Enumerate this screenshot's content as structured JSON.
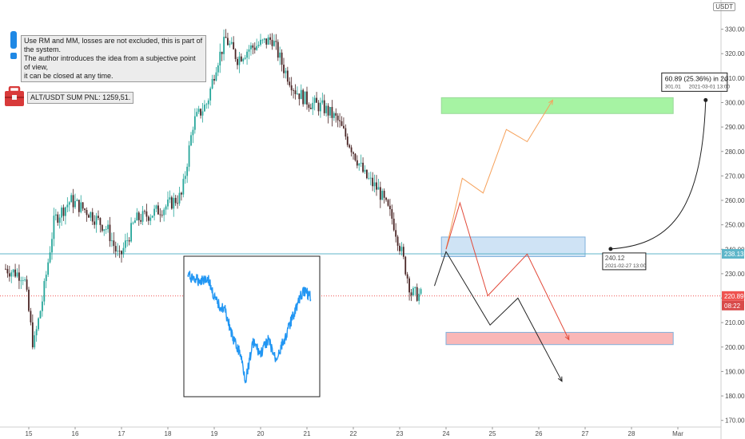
{
  "currency": "USDT",
  "notes": {
    "info_text": "Use RM and MM, losses are not excluded, this is part of the system.\nThe author introduces the idea from a subjective point of view,\n it can be closed at any time.",
    "pnl_text": "ALT/USDT SUM PNL: 1259,51."
  },
  "price_axis": {
    "ticks": [
      "330.00",
      "320.00",
      "310.00",
      "300.00",
      "290.00",
      "280.00",
      "270.00",
      "260.00",
      "250.00",
      "240.00",
      "230.00",
      "220.00",
      "210.00",
      "200.00",
      "190.00",
      "180.00",
      "170.00"
    ]
  },
  "labels": {
    "level_price": "238.13",
    "last_price": "220.89",
    "countdown": "08:22",
    "anchor_price": "240.12",
    "anchor_date": "2021-02-27  13:00",
    "measure_line1": "60.89 (25.36%) in 2d",
    "measure_line2a": "301.01",
    "measure_line2b": "2021-03-01  13:00"
  },
  "colors": {
    "up": "#26a69a",
    "down": "#4a2525",
    "level": "#5fb6c9",
    "last": "#ef5350",
    "green_zone": "#a6f3a3",
    "blue_zone": "#cfe3f5",
    "red_zone": "#f9b7b7",
    "orange_path": "#f6a15a",
    "red_path": "#e24a3a",
    "black_path": "#222222",
    "inset_line": "#2196f3",
    "briefcase": "#d83a3a",
    "info_marker": "#1e88e5"
  },
  "chart_data": {
    "type": "candlestick",
    "ylim": [
      167,
      338
    ],
    "x_ticks": [
      "15",
      "16",
      "17",
      "18",
      "19",
      "20",
      "21",
      "22",
      "23",
      "24",
      "25",
      "26",
      "27",
      "28",
      "Mar"
    ],
    "level": 238.13,
    "last_price": 220.89,
    "trajectory": [
      [
        14.5,
        232
      ],
      [
        14.9,
        229
      ],
      [
        15.1,
        200
      ],
      [
        15.3,
        220
      ],
      [
        15.55,
        252
      ],
      [
        15.9,
        260
      ],
      [
        16.3,
        255
      ],
      [
        16.7,
        248
      ],
      [
        16.95,
        236
      ],
      [
        17.3,
        252
      ],
      [
        17.7,
        255
      ],
      [
        18.0,
        258
      ],
      [
        18.3,
        262
      ],
      [
        18.55,
        292
      ],
      [
        18.85,
        300
      ],
      [
        19.05,
        316
      ],
      [
        19.25,
        326
      ],
      [
        19.5,
        318
      ],
      [
        19.75,
        322
      ],
      [
        20.0,
        324
      ],
      [
        20.25,
        326
      ],
      [
        20.5,
        314
      ],
      [
        20.75,
        305
      ],
      [
        21.05,
        300
      ],
      [
        21.35,
        298
      ],
      [
        21.65,
        293
      ],
      [
        21.95,
        282
      ],
      [
        22.25,
        270
      ],
      [
        22.55,
        264
      ],
      [
        22.85,
        252
      ],
      [
        23.05,
        238
      ],
      [
        23.25,
        222
      ],
      [
        23.5,
        221
      ]
    ],
    "scenarios": {
      "orange": [
        [
          24.0,
          240
        ],
        [
          24.35,
          269
        ],
        [
          24.8,
          263
        ],
        [
          25.3,
          289
        ],
        [
          25.75,
          284
        ],
        [
          26.3,
          301
        ]
      ],
      "red": [
        [
          24.0,
          240
        ],
        [
          24.3,
          259
        ],
        [
          24.9,
          221
        ],
        [
          25.75,
          238
        ],
        [
          26.65,
          203
        ]
      ],
      "black": [
        [
          23.75,
          225
        ],
        [
          24.0,
          239
        ],
        [
          24.95,
          209
        ],
        [
          25.55,
          220
        ],
        [
          26.5,
          186
        ]
      ]
    },
    "zones": {
      "green": {
        "x": [
          23.9,
          28.9
        ],
        "y": [
          295.5,
          302
        ]
      },
      "blue": {
        "x": [
          23.9,
          27.0
        ],
        "y": [
          237,
          245
        ]
      },
      "red": {
        "x": [
          24.0,
          28.9
        ],
        "y": [
          201,
          206
        ]
      }
    },
    "measure": {
      "from": {
        "x": 27.55,
        "price": 240.12,
        "date": "2021-02-27 13:00"
      },
      "to": {
        "x": 29.6,
        "price": 301.01,
        "date": "2021-03-01 13:00"
      },
      "change": 60.89,
      "change_pct": 25.36,
      "duration": "2d"
    }
  }
}
